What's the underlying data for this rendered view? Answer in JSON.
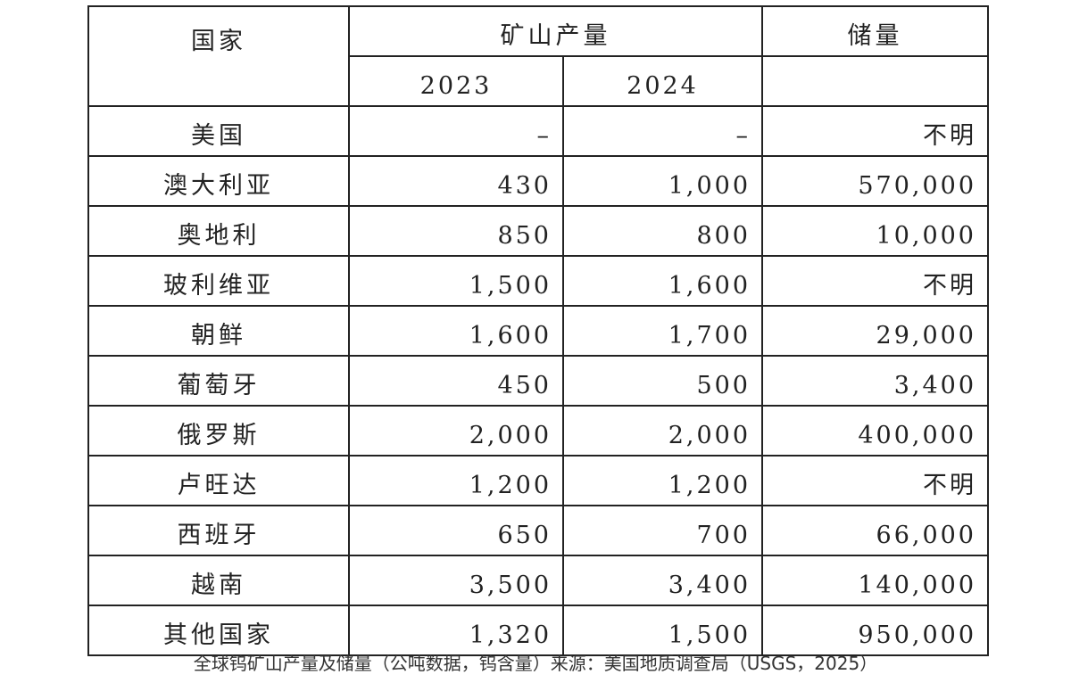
{
  "table": {
    "headers": {
      "country": "国家",
      "production": "矿山产量",
      "reserves": "储量",
      "year_2023": "2023",
      "year_2024": "2024"
    },
    "rows": [
      {
        "country": "美国",
        "p2023": "–",
        "p2024": "–",
        "reserves": "不明"
      },
      {
        "country": "澳大利亚",
        "p2023": "430",
        "p2024": "1,000",
        "reserves": "570,000"
      },
      {
        "country": "奥地利",
        "p2023": "850",
        "p2024": "800",
        "reserves": "10,000"
      },
      {
        "country": "玻利维亚",
        "p2023": "1,500",
        "p2024": "1,600",
        "reserves": "不明"
      },
      {
        "country": "朝鲜",
        "p2023": "1,600",
        "p2024": "1,700",
        "reserves": "29,000"
      },
      {
        "country": "葡萄牙",
        "p2023": "450",
        "p2024": "500",
        "reserves": "3,400"
      },
      {
        "country": "俄罗斯",
        "p2023": "2,000",
        "p2024": "2,000",
        "reserves": "400,000"
      },
      {
        "country": "卢旺达",
        "p2023": "1,200",
        "p2024": "1,200",
        "reserves": "不明"
      },
      {
        "country": "西班牙",
        "p2023": "650",
        "p2024": "700",
        "reserves": "66,000"
      },
      {
        "country": "越南",
        "p2023": "3,500",
        "p2024": "3,400",
        "reserves": "140,000"
      },
      {
        "country": "其他国家",
        "p2023": "1,320",
        "p2024": "1,500",
        "reserves": "950,000"
      }
    ]
  },
  "caption": "全球钨矿山产量及储量（公吨数据，钨含量）来源：美国地质调查局（USGS，2025）"
}
